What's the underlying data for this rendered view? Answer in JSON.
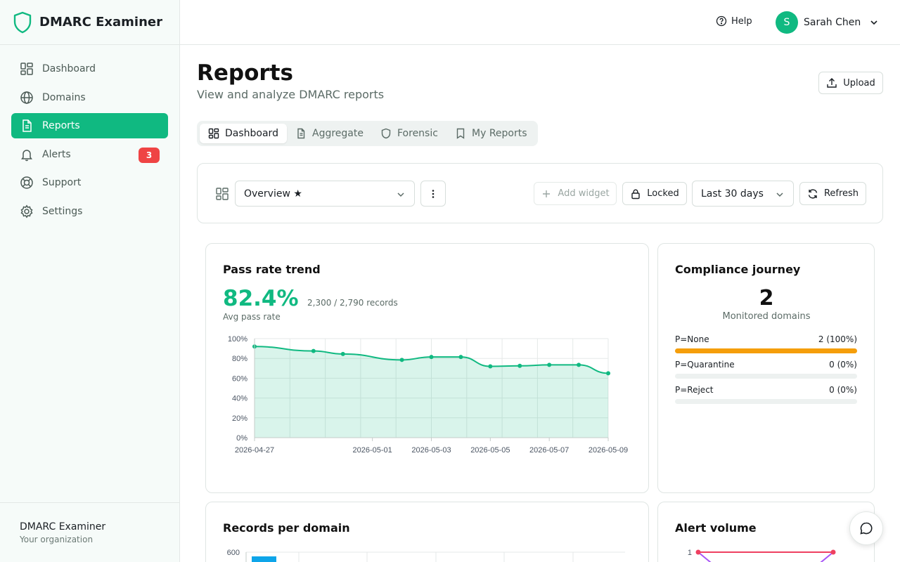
{
  "app": {
    "name": "DMARC Examiner"
  },
  "sidebar": {
    "items": [
      {
        "label": "Dashboard",
        "icon": "dashboard-icon"
      },
      {
        "label": "Domains",
        "icon": "globe-icon"
      },
      {
        "label": "Reports",
        "icon": "document-icon",
        "active": true
      },
      {
        "label": "Alerts",
        "icon": "bell-icon",
        "badge": "3"
      },
      {
        "label": "Support",
        "icon": "lifebuoy-icon"
      },
      {
        "label": "Settings",
        "icon": "gear-icon"
      }
    ],
    "footer": {
      "title": "DMARC Examiner",
      "subtitle": "Your organization"
    }
  },
  "topbar": {
    "help_label": "Help",
    "user": {
      "initial": "S",
      "name": "Sarah Chen"
    }
  },
  "header": {
    "title": "Reports",
    "subtitle": "View and analyze DMARC reports",
    "upload_label": "Upload"
  },
  "tabs": [
    {
      "label": "Dashboard",
      "active": true
    },
    {
      "label": "Aggregate"
    },
    {
      "label": "Forensic"
    },
    {
      "label": "My Reports"
    }
  ],
  "toolbar": {
    "dashboard_select": "Overview ★",
    "add_widget_label": "Add widget",
    "locked_label": "Locked",
    "range_select": "Last 30 days",
    "refresh_label": "Refresh"
  },
  "pass_rate": {
    "title": "Pass rate trend",
    "value": "82.4%",
    "records": "2,300 / 2,790 records",
    "caption": "Avg pass rate"
  },
  "compliance": {
    "title": "Compliance journey",
    "count": "2",
    "caption": "Monitored domains",
    "rows": [
      {
        "label": "P=None",
        "value": "2 (100%)",
        "fraction": 1.0
      },
      {
        "label": "P=Quarantine",
        "value": "0 (0%)",
        "fraction": 0
      },
      {
        "label": "P=Reject",
        "value": "0 (0%)",
        "fraction": 0
      }
    ]
  },
  "records_per_domain": {
    "title": "Records per domain"
  },
  "alert_volume": {
    "title": "Alert volume"
  },
  "colors": {
    "accent": "#10b981",
    "warning": "#f59e0b",
    "danger": "#ef4444",
    "bar": "#0ea5e9",
    "alert_line_a": "#ef4060",
    "alert_line_b": "#a855f7"
  },
  "chart_data": [
    {
      "type": "area",
      "x": [
        "2026-04-27",
        "2026-04-29",
        "2026-04-30",
        "2026-05-02",
        "2026-05-03",
        "2026-05-04",
        "2026-05-05",
        "2026-05-06",
        "2026-05-07",
        "2026-05-08",
        "2026-05-09"
      ],
      "values": [
        92,
        87.5,
        84.5,
        78.5,
        81.5,
        81.5,
        72,
        72.5,
        73.5,
        73.5,
        65
      ],
      "x_ticks": [
        "2026-04-27",
        "2026-05-01",
        "2026-05-03",
        "2026-05-05",
        "2026-05-07",
        "2026-05-09"
      ],
      "y_ticks": [
        "0%",
        "20%",
        "40%",
        "60%",
        "80%",
        "100%"
      ],
      "ylim": [
        0,
        100
      ],
      "grid": true
    },
    {
      "type": "bar",
      "y_ticks": [
        "600"
      ],
      "values": [
        600
      ],
      "grid": true
    },
    {
      "type": "line",
      "y_ticks": [
        "1"
      ],
      "series": [
        {
          "values": [
            1,
            1
          ]
        },
        {
          "values": [
            1,
            0
          ]
        }
      ]
    }
  ]
}
